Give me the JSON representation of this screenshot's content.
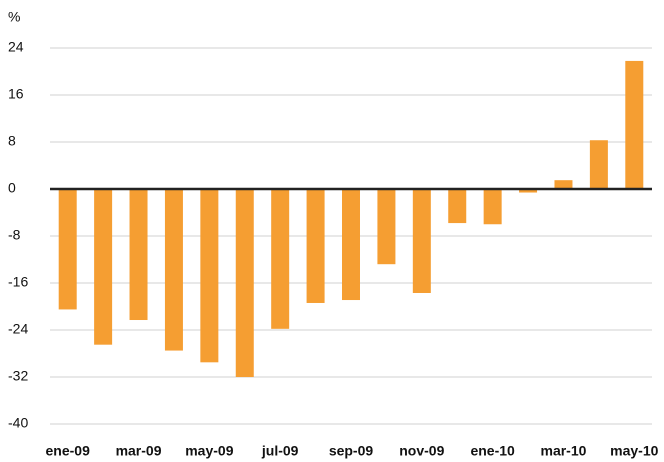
{
  "chart_data": {
    "type": "bar",
    "y_label": "%",
    "categories": [
      "ene-09",
      null,
      "mar-09",
      null,
      "may-09",
      null,
      "jul-09",
      null,
      "sep-09",
      null,
      "nov-09",
      null,
      "ene-10",
      null,
      "mar-10",
      null,
      "may-10"
    ],
    "values": [
      -20.5,
      -26.5,
      -22.3,
      -27.5,
      -29.5,
      -32,
      -23.8,
      -19.4,
      -18.9,
      -12.8,
      -17.7,
      -5.8,
      -6,
      -0.6,
      1.5,
      8.3,
      21.8
    ],
    "color": "#f59e32",
    "ylim": [
      -40,
      24
    ],
    "yticks": [
      -40,
      -32,
      -24,
      -16,
      -8,
      0,
      8,
      16,
      24
    ],
    "grid": true
  }
}
